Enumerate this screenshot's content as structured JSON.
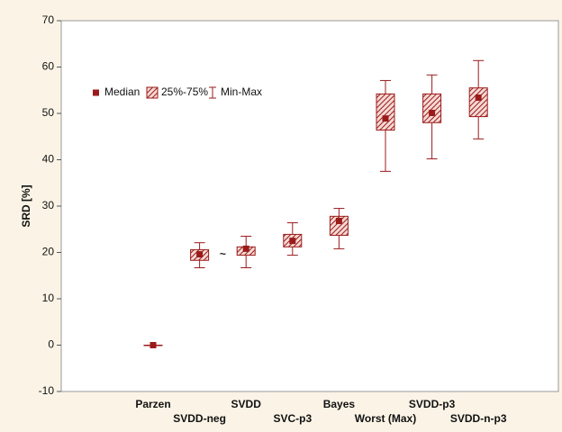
{
  "chart_data": {
    "type": "box",
    "y_label": "SRD [%]",
    "categories": [
      "Parzen",
      "SVDD-neg",
      "SVDD",
      "SVC-p3",
      "Bayes",
      "Worst (Max)",
      "SVDD-p3",
      "SVDD-n-p3"
    ],
    "median": [
      0,
      19.6,
      20.8,
      22.5,
      26.8,
      48.9,
      50.1,
      53.4
    ],
    "q1": [
      0,
      18.3,
      19.4,
      21.2,
      23.7,
      46.4,
      48.0,
      49.3
    ],
    "q3": [
      0,
      20.6,
      21.2,
      23.9,
      27.8,
      54.2,
      54.2,
      55.5
    ],
    "min": [
      0,
      16.7,
      16.7,
      19.4,
      20.8,
      37.5,
      40.2,
      44.5
    ],
    "max": [
      0,
      22.1,
      23.5,
      26.4,
      29.5,
      57.1,
      58.3,
      61.4
    ],
    "color": "#9b1b1b",
    "legend": [
      "Median",
      "25%-75%",
      "Min-Max"
    ],
    "annotation": "~",
    "ylim": [
      -10,
      70
    ],
    "yticks": [
      -10,
      0,
      10,
      20,
      30,
      40,
      50,
      60,
      70
    ]
  }
}
